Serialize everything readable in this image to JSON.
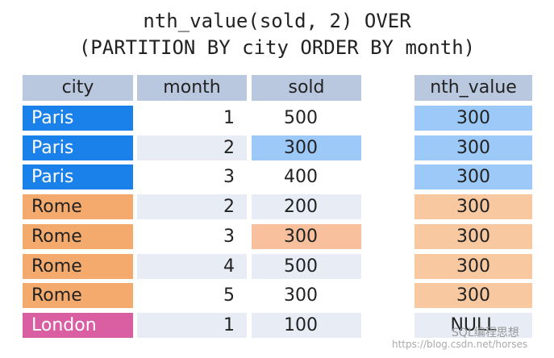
{
  "title": {
    "line1": "nth_value(sold, 2) OVER",
    "line2": "(PARTITION BY city ORDER BY month)"
  },
  "table": {
    "columns": [
      "city",
      "month",
      "sold"
    ],
    "rows": [
      [
        "Paris",
        1,
        500
      ],
      [
        "Paris",
        2,
        300
      ],
      [
        "Paris",
        3,
        400
      ],
      [
        "Rome",
        2,
        200
      ],
      [
        "Rome",
        3,
        300
      ],
      [
        "Rome",
        4,
        500
      ],
      [
        "Rome",
        5,
        300
      ],
      [
        "London",
        1,
        100
      ]
    ]
  },
  "result": {
    "header": "nth_value",
    "values": [
      300,
      300,
      300,
      300,
      300,
      300,
      300,
      "NULL"
    ]
  },
  "watermark": {
    "brand": "SQL编程思想",
    "url": "https://blog.csdn.net/horses"
  }
}
